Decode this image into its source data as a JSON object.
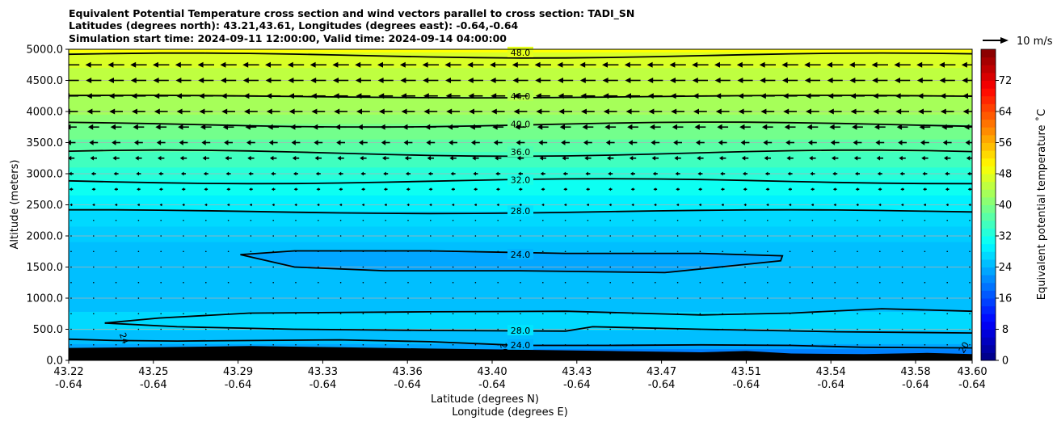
{
  "title": {
    "line1": "Equivalent Potential Temperature cross section and wind vectors parallel to cross section: TADI_SN",
    "line2": "Latitudes (degrees north): 43.21,43.61, Longitudes (degrees east): -0.64,-0.64",
    "line3": "Simulation start time: 2024-09-11 12:00:00, Valid time: 2024-09-14 04:00:00"
  },
  "chart_data": {
    "type": "contour",
    "ylabel": "Altitude (meters)",
    "xlabel_lat": "Latitude (degrees N)",
    "xlabel_lon": "Longitude (degrees E)",
    "ylim": [
      0,
      5000
    ],
    "y_ticks": [
      "0.0",
      "500.0",
      "1000.0",
      "1500.0",
      "2000.0",
      "2500.0",
      "3000.0",
      "3500.0",
      "4000.0",
      "4500.0",
      "5000.0"
    ],
    "x_ticks": [
      {
        "lat": "43.22",
        "lon": "-0.64"
      },
      {
        "lat": "43.25",
        "lon": "-0.64"
      },
      {
        "lat": "43.29",
        "lon": "-0.64"
      },
      {
        "lat": "43.33",
        "lon": "-0.64"
      },
      {
        "lat": "43.36",
        "lon": "-0.64"
      },
      {
        "lat": "43.40",
        "lon": "-0.64"
      },
      {
        "lat": "43.43",
        "lon": "-0.64"
      },
      {
        "lat": "43.47",
        "lon": "-0.64"
      },
      {
        "lat": "43.51",
        "lon": "-0.64"
      },
      {
        "lat": "43.54",
        "lon": "-0.64"
      },
      {
        "lat": "43.58",
        "lon": "-0.64"
      },
      {
        "lat": "43.60",
        "lon": "-0.64"
      }
    ],
    "colorbar": {
      "label": "Equivalent potential temperature ˚C",
      "range": [
        0,
        80
      ],
      "ticks": [
        "0",
        "8",
        "16",
        "24",
        "32",
        "40",
        "48",
        "56",
        "64",
        "72"
      ]
    },
    "quiver_key": "10 m/s",
    "contours": [
      {
        "level": "24.0",
        "altitude_approx": 1600,
        "note": "closed region"
      },
      {
        "level": "24.0",
        "altitude_approx": 250
      },
      {
        "level": "28.0",
        "altitude_approx": 2400
      },
      {
        "level": "28.0",
        "altitude_approx": 500
      },
      {
        "level": "32.0",
        "altitude_approx": 2900
      },
      {
        "level": "36.0",
        "altitude_approx": 3350
      },
      {
        "level": "40.0",
        "altitude_approx": 3800
      },
      {
        "level": "44.0",
        "altitude_approx": 4250
      },
      {
        "level": "48.0",
        "altitude_approx": 4950
      }
    ],
    "edge_labels": [
      "24",
      "20",
      "20"
    ],
    "wind": {
      "direction": "toward south (left)",
      "speed_profile_mps": [
        {
          "altitude": 1000,
          "speed": 0.3
        },
        {
          "altitude": 2250,
          "speed": 0.8
        },
        {
          "altitude": 3000,
          "speed": 2.5
        },
        {
          "altitude": 3500,
          "speed": 4.5
        },
        {
          "altitude": 4000,
          "speed": 7.0
        },
        {
          "altitude": 4500,
          "speed": 8.0
        },
        {
          "altitude": 4750,
          "speed": 8.5
        }
      ]
    }
  }
}
